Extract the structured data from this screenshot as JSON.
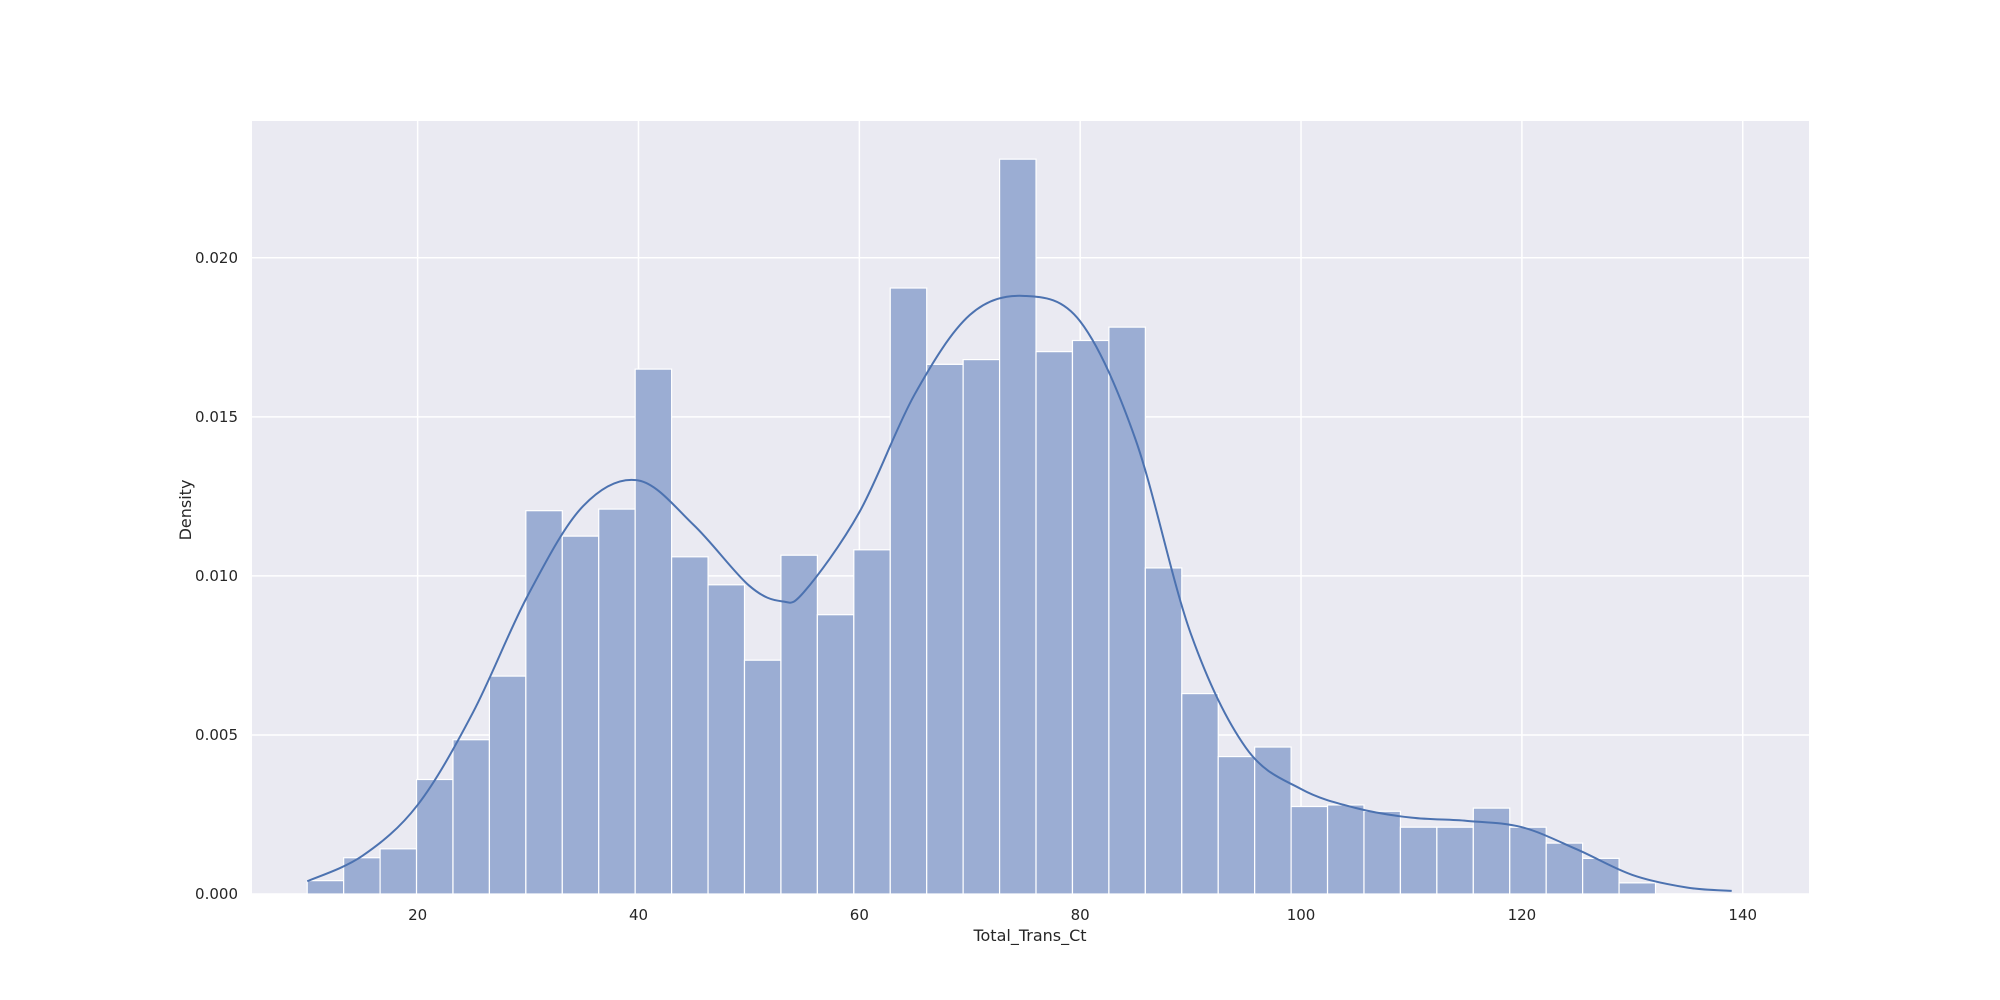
{
  "chart_data": {
    "type": "bar",
    "subtype": "histogram-with-kde",
    "title": "",
    "xlabel": "Total_Trans_Ct",
    "ylabel": "Density",
    "xlim": [
      5,
      146
    ],
    "ylim": [
      0,
      0.0243
    ],
    "xticks": [
      20,
      40,
      60,
      80,
      100,
      120,
      140
    ],
    "yticks": [
      0.0,
      0.005,
      0.01,
      0.015,
      0.02
    ],
    "ytick_labels": [
      "0.000",
      "0.005",
      "0.010",
      "0.015",
      "0.020"
    ],
    "grid": true,
    "legend": "none",
    "colors": {
      "background": "#eaeaf2",
      "grid": "#ffffff",
      "bar_fill": "#9badd3",
      "bar_edge": "#ffffff",
      "kde_line": "#4c72b0"
    },
    "bins": {
      "start": 10,
      "width": 3.3,
      "count": 37
    },
    "values": [
      0.00042,
      0.00114,
      0.00142,
      0.0036,
      0.00485,
      0.00685,
      0.01205,
      0.01125,
      0.0121,
      0.0165,
      0.0106,
      0.00972,
      0.00735,
      0.01065,
      0.00878,
      0.01082,
      0.01905,
      0.01665,
      0.0168,
      0.0231,
      0.01705,
      0.0174,
      0.01782,
      0.01025,
      0.0063,
      0.00432,
      0.00462,
      0.00275,
      0.0028,
      0.0026,
      0.0021,
      0.0021,
      0.0027,
      0.0021,
      0.0016,
      0.00112,
      0.00035
    ],
    "kde": {
      "x": [
        10,
        15,
        20,
        25,
        30,
        35,
        40,
        45,
        50,
        53,
        55,
        60,
        65,
        70,
        75,
        80,
        85,
        90,
        95,
        100,
        105,
        110,
        115,
        120,
        125,
        130,
        135,
        139
      ],
      "y": [
        0.0004,
        0.0012,
        0.0028,
        0.0057,
        0.0094,
        0.0122,
        0.013,
        0.0116,
        0.0097,
        0.0092,
        0.0095,
        0.012,
        0.0157,
        0.0182,
        0.0188,
        0.018,
        0.0143,
        0.0082,
        0.0046,
        0.0033,
        0.0027,
        0.0024,
        0.0023,
        0.0021,
        0.0014,
        0.0006,
        0.0002,
        0.0001
      ]
    }
  }
}
